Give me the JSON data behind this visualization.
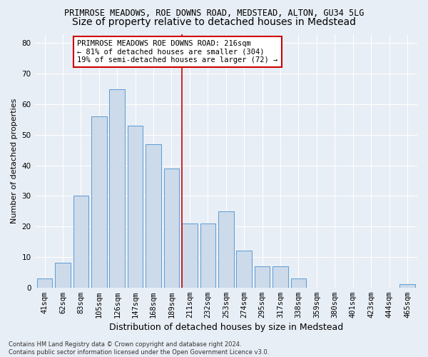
{
  "title1": "PRIMROSE MEADOWS, ROE DOWNS ROAD, MEDSTEAD, ALTON, GU34 5LG",
  "title2": "Size of property relative to detached houses in Medstead",
  "xlabel": "Distribution of detached houses by size in Medstead",
  "ylabel": "Number of detached properties",
  "categories": [
    "41sqm",
    "62sqm",
    "83sqm",
    "105sqm",
    "126sqm",
    "147sqm",
    "168sqm",
    "189sqm",
    "211sqm",
    "232sqm",
    "253sqm",
    "274sqm",
    "295sqm",
    "317sqm",
    "338sqm",
    "359sqm",
    "380sqm",
    "401sqm",
    "423sqm",
    "444sqm",
    "465sqm"
  ],
  "values": [
    3,
    8,
    30,
    56,
    65,
    53,
    47,
    39,
    21,
    21,
    25,
    12,
    7,
    7,
    3,
    0,
    0,
    0,
    0,
    0,
    1
  ],
  "bar_color": "#ccdaea",
  "bar_edge_color": "#5b9bd5",
  "vline_index": 8,
  "vline_color": "#cc0000",
  "annotation_text": "PRIMROSE MEADOWS ROE DOWNS ROAD: 216sqm\n← 81% of detached houses are smaller (304)\n19% of semi-detached houses are larger (72) →",
  "annotation_box_color": "#ffffff",
  "annotation_box_edgecolor": "#cc0000",
  "ylim": [
    0,
    83
  ],
  "yticks": [
    0,
    10,
    20,
    30,
    40,
    50,
    60,
    70,
    80
  ],
  "footnote": "Contains HM Land Registry data © Crown copyright and database right 2024.\nContains public sector information licensed under the Open Government Licence v3.0.",
  "bg_color": "#e8eef5",
  "plot_bg_color": "#e8eef5",
  "grid_color": "#ffffff",
  "title1_fontsize": 8.5,
  "title2_fontsize": 10,
  "xlabel_fontsize": 9,
  "ylabel_fontsize": 8,
  "tick_fontsize": 7.5,
  "annot_fontsize": 7.5,
  "footnote_fontsize": 6
}
